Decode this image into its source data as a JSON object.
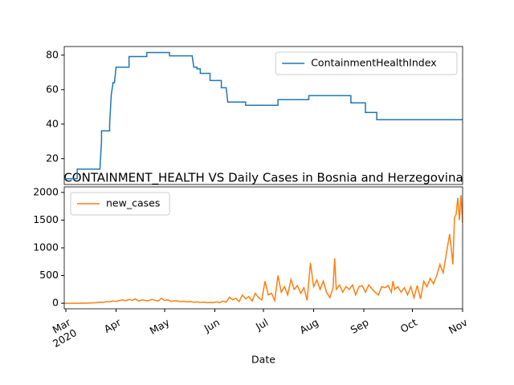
{
  "chart_data": [
    {
      "type": "line",
      "legend": "upper right",
      "xlim": [
        60,
        306
      ],
      "ylim": [
        5,
        85
      ],
      "yticks": [
        20,
        40,
        60,
        80
      ],
      "series": [
        {
          "name": "ContainmentHealthIndex",
          "color": "#1f77b4",
          "x": [
            60,
            68,
            68,
            82,
            83,
            83,
            88,
            88,
            89,
            90,
            90,
            91,
            92,
            100,
            100,
            111,
            111,
            125,
            125,
            139,
            140,
            142,
            142,
            144,
            144,
            150,
            150,
            157,
            157,
            160,
            161,
            172,
            172,
            192,
            192,
            211,
            211,
            237,
            237,
            246,
            246,
            253,
            253,
            306
          ],
          "values": [
            8.3,
            8.3,
            13.9,
            13.9,
            30,
            36.1,
            36.1,
            40,
            57,
            63,
            64,
            64,
            73,
            73,
            79.2,
            79.2,
            81.5,
            81.5,
            79.6,
            79.6,
            73,
            73,
            72,
            72,
            69.4,
            69.4,
            65.3,
            65.3,
            61.1,
            61.1,
            52.8,
            52.8,
            50.9,
            50.9,
            54.2,
            54.2,
            56.5,
            56.5,
            52.3,
            52.3,
            46.7,
            46.7,
            42.6,
            42.6
          ]
        }
      ]
    },
    {
      "type": "line",
      "title": "CONTAINMENT_HEALTH VS Daily Cases in Bosnia and Herzegovina",
      "x_label": "Date",
      "legend": "upper left",
      "xlim": [
        60,
        306
      ],
      "ylim": [
        -100,
        2100
      ],
      "yticks": [
        0,
        500,
        1000,
        1500,
        2000
      ],
      "xticks": [
        {
          "value": 61,
          "label": "Mar\n2020"
        },
        {
          "value": 92,
          "label": "Apr"
        },
        {
          "value": 122,
          "label": "May"
        },
        {
          "value": 153,
          "label": "Jun"
        },
        {
          "value": 183,
          "label": "Jul"
        },
        {
          "value": 214,
          "label": "Aug"
        },
        {
          "value": 245,
          "label": "Sep"
        },
        {
          "value": 275,
          "label": "Oct"
        },
        {
          "value": 306,
          "label": "Nov"
        }
      ],
      "series": [
        {
          "name": "new_cases",
          "color": "#ff7f0e",
          "x": [
            60,
            62,
            64,
            66,
            68,
            70,
            72,
            74,
            76,
            78,
            80,
            82,
            84,
            86,
            88,
            90,
            92,
            94,
            96,
            98,
            100,
            102,
            104,
            106,
            108,
            110,
            112,
            114,
            116,
            118,
            120,
            122,
            124,
            126,
            128,
            130,
            132,
            134,
            136,
            138,
            140,
            142,
            144,
            146,
            148,
            150,
            152,
            154,
            156,
            158,
            160,
            162,
            164,
            166,
            168,
            170,
            172,
            174,
            176,
            178,
            180,
            182,
            184,
            186,
            188,
            190,
            192,
            194,
            196,
            198,
            200,
            202,
            204,
            206,
            208,
            210,
            212,
            214,
            216,
            218,
            220,
            222,
            224,
            226,
            227,
            228,
            230,
            232,
            234,
            236,
            238,
            240,
            242,
            244,
            246,
            248,
            250,
            252,
            254,
            256,
            258,
            260,
            262,
            263,
            264,
            266,
            268,
            270,
            272,
            274,
            276,
            278,
            280,
            282,
            284,
            286,
            288,
            290,
            292,
            294,
            296,
            298,
            300,
            301,
            302,
            303,
            304,
            305,
            306
          ],
          "values": [
            0,
            0,
            0,
            0,
            0,
            1,
            2,
            3,
            5,
            8,
            10,
            20,
            15,
            30,
            25,
            40,
            35,
            50,
            60,
            45,
            70,
            55,
            80,
            40,
            60,
            50,
            45,
            70,
            55,
            40,
            90,
            50,
            60,
            35,
            45,
            40,
            30,
            35,
            25,
            30,
            20,
            25,
            15,
            20,
            10,
            15,
            10,
            25,
            10,
            40,
            20,
            110,
            60,
            90,
            30,
            150,
            80,
            120,
            40,
            180,
            100,
            60,
            400,
            150,
            180,
            50,
            500,
            200,
            300,
            150,
            430,
            250,
            320,
            180,
            280,
            50,
            730,
            300,
            420,
            250,
            400,
            200,
            100,
            280,
            810,
            250,
            330,
            200,
            300,
            250,
            330,
            150,
            300,
            320,
            200,
            330,
            260,
            200,
            150,
            300,
            280,
            320,
            200,
            400,
            250,
            300,
            200,
            280,
            150,
            300,
            100,
            320,
            80,
            400,
            300,
            450,
            350,
            500,
            700,
            550,
            900,
            1250,
            700,
            1550,
            1600,
            1900,
            1500,
            1950,
            1450
          ]
        }
      ]
    }
  ]
}
